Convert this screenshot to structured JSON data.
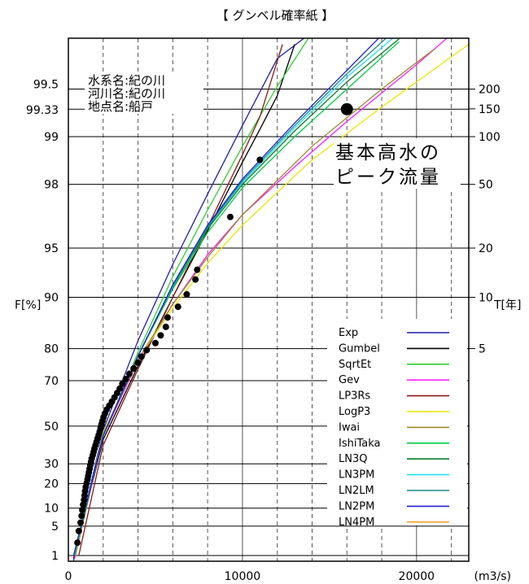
{
  "chart_data": {
    "type": "scatter",
    "title": "【 グンベル確率紙 】",
    "xlabel": "(m3/s)",
    "ylabel_left": "F[%]",
    "ylabel_right": "T[年]",
    "xlim": [
      0,
      23000
    ],
    "x_ticks": [
      0,
      10000,
      20000
    ],
    "x_ticklabels": [
      "0",
      "10000",
      "20000"
    ],
    "x_gridlines": [
      2000,
      4000,
      6000,
      8000,
      10000,
      12000,
      14000,
      16000,
      18000,
      20000,
      22000
    ],
    "grid": true,
    "y_scale": "gumbel",
    "left_ticks": [
      {
        "p": 1,
        "label": "1"
      },
      {
        "p": 5,
        "label": "5"
      },
      {
        "p": 10,
        "label": "10"
      },
      {
        "p": 20,
        "label": "20"
      },
      {
        "p": 30,
        "label": "30"
      },
      {
        "p": 50,
        "label": "50"
      },
      {
        "p": 70,
        "label": "70"
      },
      {
        "p": 80,
        "label": "80"
      },
      {
        "p": 90,
        "label": "90"
      },
      {
        "p": 95,
        "label": "95"
      },
      {
        "p": 98,
        "label": "98"
      },
      {
        "p": 99,
        "label": "99"
      },
      {
        "p": 99.33,
        "label": "99.33"
      },
      {
        "p": 99.5,
        "label": "99.5"
      }
    ],
    "right_ticks": [
      {
        "p": 80,
        "label": "5"
      },
      {
        "p": 90,
        "label": "10"
      },
      {
        "p": 95,
        "label": "20"
      },
      {
        "p": 98,
        "label": "50"
      },
      {
        "p": 99,
        "label": "100"
      },
      {
        "p": 99.333,
        "label": "150"
      },
      {
        "p": 99.5,
        "label": "200"
      }
    ],
    "site_info": [
      "水系名:紀の川",
      "河川名:紀の川",
      "地点名:船戸"
    ],
    "annotation": [
      "基本高水の",
      "ピーク流量"
    ],
    "design_flood_point": {
      "x": 16000,
      "p": 99.33
    },
    "observations": [
      {
        "x": 520,
        "p": 2.2
      },
      {
        "x": 600,
        "p": 4.0
      },
      {
        "x": 700,
        "p": 5.8
      },
      {
        "x": 760,
        "p": 7.6
      },
      {
        "x": 800,
        "p": 9.4
      },
      {
        "x": 850,
        "p": 11.2
      },
      {
        "x": 900,
        "p": 13.0
      },
      {
        "x": 930,
        "p": 14.8
      },
      {
        "x": 960,
        "p": 16.6
      },
      {
        "x": 1000,
        "p": 18.4
      },
      {
        "x": 1050,
        "p": 20.2
      },
      {
        "x": 1100,
        "p": 22.0
      },
      {
        "x": 1140,
        "p": 23.8
      },
      {
        "x": 1180,
        "p": 25.6
      },
      {
        "x": 1220,
        "p": 27.4
      },
      {
        "x": 1260,
        "p": 29.2
      },
      {
        "x": 1300,
        "p": 31.0
      },
      {
        "x": 1340,
        "p": 32.8
      },
      {
        "x": 1400,
        "p": 34.6
      },
      {
        "x": 1450,
        "p": 36.4
      },
      {
        "x": 1500,
        "p": 38.2
      },
      {
        "x": 1560,
        "p": 40.0
      },
      {
        "x": 1620,
        "p": 41.8
      },
      {
        "x": 1680,
        "p": 43.6
      },
      {
        "x": 1740,
        "p": 45.4
      },
      {
        "x": 1800,
        "p": 47.2
      },
      {
        "x": 1850,
        "p": 49.0
      },
      {
        "x": 1900,
        "p": 50.8
      },
      {
        "x": 1960,
        "p": 52.6
      },
      {
        "x": 2020,
        "p": 54.4
      },
      {
        "x": 2100,
        "p": 56.2
      },
      {
        "x": 2200,
        "p": 58.0
      },
      {
        "x": 2350,
        "p": 59.8
      },
      {
        "x": 2500,
        "p": 61.6
      },
      {
        "x": 2650,
        "p": 63.4
      },
      {
        "x": 2800,
        "p": 65.2
      },
      {
        "x": 2950,
        "p": 67.0
      },
      {
        "x": 3100,
        "p": 68.8
      },
      {
        "x": 3300,
        "p": 70.6
      },
      {
        "x": 3500,
        "p": 72.4
      },
      {
        "x": 3750,
        "p": 74.2
      },
      {
        "x": 4000,
        "p": 76.0
      },
      {
        "x": 4200,
        "p": 77.8
      },
      {
        "x": 4500,
        "p": 79.6
      },
      {
        "x": 5000,
        "p": 81.4
      },
      {
        "x": 5300,
        "p": 83.2
      },
      {
        "x": 5600,
        "p": 85.0
      },
      {
        "x": 5700,
        "p": 86.8
      },
      {
        "x": 6300,
        "p": 88.6
      },
      {
        "x": 6800,
        "p": 90.4
      },
      {
        "x": 7300,
        "p": 92.2
      },
      {
        "x": 7400,
        "p": 93.2
      },
      {
        "x": 9300,
        "p": 96.8
      },
      {
        "x": 11000,
        "p": 98.6
      }
    ],
    "series": [
      {
        "name": "Exp",
        "color": "#1f1fa8",
        "points": [
          [
            300,
            0.7
          ],
          [
            2000,
            48
          ],
          [
            4000,
            82
          ],
          [
            6000,
            93.7
          ],
          [
            8000,
            97.7
          ],
          [
            10000,
            99.15
          ],
          [
            12000,
            99.68
          ],
          [
            16000,
            99.954
          ],
          [
            19000,
            99.99
          ]
        ]
      },
      {
        "name": "Gumbel",
        "color": "#000000",
        "points": [
          [
            300,
            0.8
          ],
          [
            2000,
            43
          ],
          [
            4000,
            75
          ],
          [
            6000,
            90
          ],
          [
            8000,
            96.1
          ],
          [
            10000,
            98.55
          ],
          [
            11000,
            99.1
          ],
          [
            12000,
            99.45
          ],
          [
            13000,
            99.74
          ]
        ]
      },
      {
        "name": "SqrtEt",
        "color": "#30d030",
        "points": [
          [
            400,
            1
          ],
          [
            2000,
            45
          ],
          [
            4000,
            79
          ],
          [
            6000,
            92.5
          ],
          [
            8000,
            97.1
          ],
          [
            10000,
            98.85
          ],
          [
            12000,
            99.52
          ],
          [
            15000,
            99.9
          ]
        ]
      },
      {
        "name": "Gev",
        "color": "#ff20ff",
        "points": [
          [
            350,
            0.8
          ],
          [
            2000,
            45
          ],
          [
            4000,
            76.5
          ],
          [
            6000,
            89
          ],
          [
            8000,
            94.5
          ],
          [
            10000,
            96.9
          ],
          [
            13000,
            98.45
          ],
          [
            16000,
            99.2
          ],
          [
            20000,
            99.65
          ],
          [
            23000,
            99.82
          ]
        ]
      },
      {
        "name": "LP3Rs",
        "color": "#8b1a1a",
        "points": [
          [
            600,
            1
          ],
          [
            2000,
            40
          ],
          [
            4000,
            74
          ],
          [
            6000,
            90
          ],
          [
            8000,
            96.3
          ],
          [
            10000,
            98.7
          ],
          [
            11000,
            99.25
          ],
          [
            12300,
            99.74
          ]
        ]
      },
      {
        "name": "LogP3",
        "color": "#e6e600",
        "points": [
          [
            400,
            1
          ],
          [
            2000,
            47
          ],
          [
            4000,
            77
          ],
          [
            6000,
            88.4
          ],
          [
            8000,
            93.8
          ],
          [
            10000,
            96.4
          ],
          [
            14000,
            98.6
          ],
          [
            18000,
            99.35
          ],
          [
            23000,
            99.74
          ]
        ]
      },
      {
        "name": "Iwai",
        "color": "#9c8a2a",
        "points": [
          [
            400,
            1
          ],
          [
            2000,
            46
          ],
          [
            4000,
            77
          ],
          [
            6000,
            89
          ],
          [
            8000,
            94.3
          ],
          [
            10000,
            96.9
          ],
          [
            14000,
            98.85
          ],
          [
            18000,
            99.5
          ],
          [
            21000,
            99.72
          ]
        ]
      },
      {
        "name": "IshiTaka",
        "color": "#00cc44",
        "points": [
          [
            350,
            1
          ],
          [
            2000,
            45
          ],
          [
            4000,
            78
          ],
          [
            6000,
            91.1
          ],
          [
            8000,
            96.0
          ],
          [
            10000,
            97.9
          ],
          [
            13000,
            99.0
          ],
          [
            16000,
            99.5
          ],
          [
            19000,
            99.75
          ]
        ]
      },
      {
        "name": "LN3Q",
        "color": "#0c7a2c",
        "points": [
          [
            340,
            1
          ],
          [
            2000,
            45
          ],
          [
            4000,
            78
          ],
          [
            6000,
            91.3
          ],
          [
            8000,
            96.2
          ],
          [
            10000,
            98.0
          ],
          [
            13000,
            99.08
          ],
          [
            16000,
            99.55
          ],
          [
            19000,
            99.76
          ]
        ]
      },
      {
        "name": "LN3PM",
        "color": "#20e0f0",
        "points": [
          [
            330,
            1
          ],
          [
            2000,
            45
          ],
          [
            4000,
            78
          ],
          [
            6000,
            91.4
          ],
          [
            8000,
            96.3
          ],
          [
            10000,
            98.05
          ],
          [
            13000,
            99.12
          ],
          [
            16000,
            99.58
          ],
          [
            19000,
            99.78
          ]
        ]
      },
      {
        "name": "LN2LM",
        "color": "#1a8a8a",
        "points": [
          [
            320,
            1
          ],
          [
            2000,
            45
          ],
          [
            4000,
            78
          ],
          [
            6000,
            91.5
          ],
          [
            8000,
            96.3
          ],
          [
            10000,
            98.1
          ],
          [
            13000,
            99.15
          ],
          [
            16000,
            99.6
          ],
          [
            19000,
            99.8
          ]
        ]
      },
      {
        "name": "LN2PM",
        "color": "#2020d0",
        "points": [
          [
            300,
            1
          ],
          [
            2000,
            45
          ],
          [
            4000,
            78
          ],
          [
            6000,
            91.6
          ],
          [
            8000,
            96.4
          ],
          [
            10000,
            98.15
          ],
          [
            13000,
            99.18
          ],
          [
            16000,
            99.62
          ],
          [
            18500,
            99.8
          ]
        ]
      },
      {
        "name": "LN4PM",
        "color": "#f0a030",
        "points": []
      }
    ]
  }
}
